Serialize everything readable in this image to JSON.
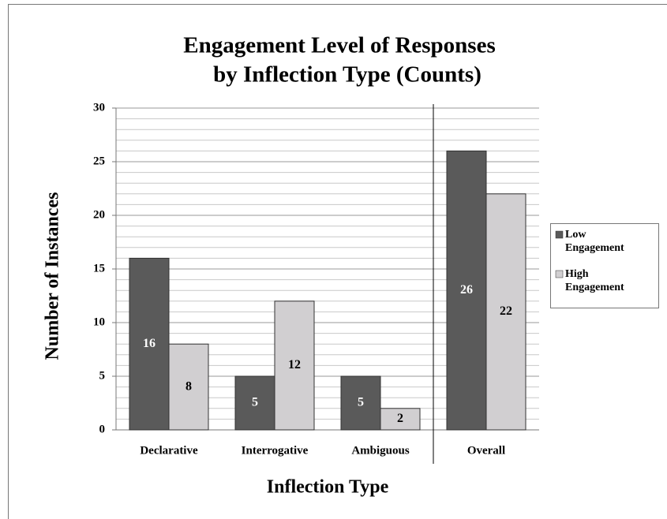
{
  "chart_data": {
    "type": "bar",
    "title": [
      "Engagement Level of Responses",
      "by Inflection Type (Counts)"
    ],
    "x_label": "Inflection Type",
    "y_label": "Number of Instances",
    "categories": [
      "Declarative",
      "Interrogative",
      "Ambiguous",
      "Overall"
    ],
    "series": [
      {
        "name": "Low Engagement",
        "color": "#5a5a5a",
        "label_color": "#ffffff",
        "values": [
          16,
          5,
          5,
          26
        ]
      },
      {
        "name": "High Engagement",
        "color": "#d1cfd1",
        "label_color": "#000000",
        "values": [
          8,
          12,
          2,
          22
        ]
      }
    ],
    "ylim": [
      0,
      30
    ],
    "yticks": [
      0,
      5,
      10,
      15,
      20,
      25,
      30
    ],
    "yminorticks": [
      1,
      2,
      3,
      4,
      6,
      7,
      8,
      9,
      11,
      12,
      13,
      14,
      16,
      17,
      18,
      19,
      21,
      22,
      23,
      24,
      26,
      27,
      28,
      29
    ],
    "grid": true,
    "legend": "right"
  }
}
